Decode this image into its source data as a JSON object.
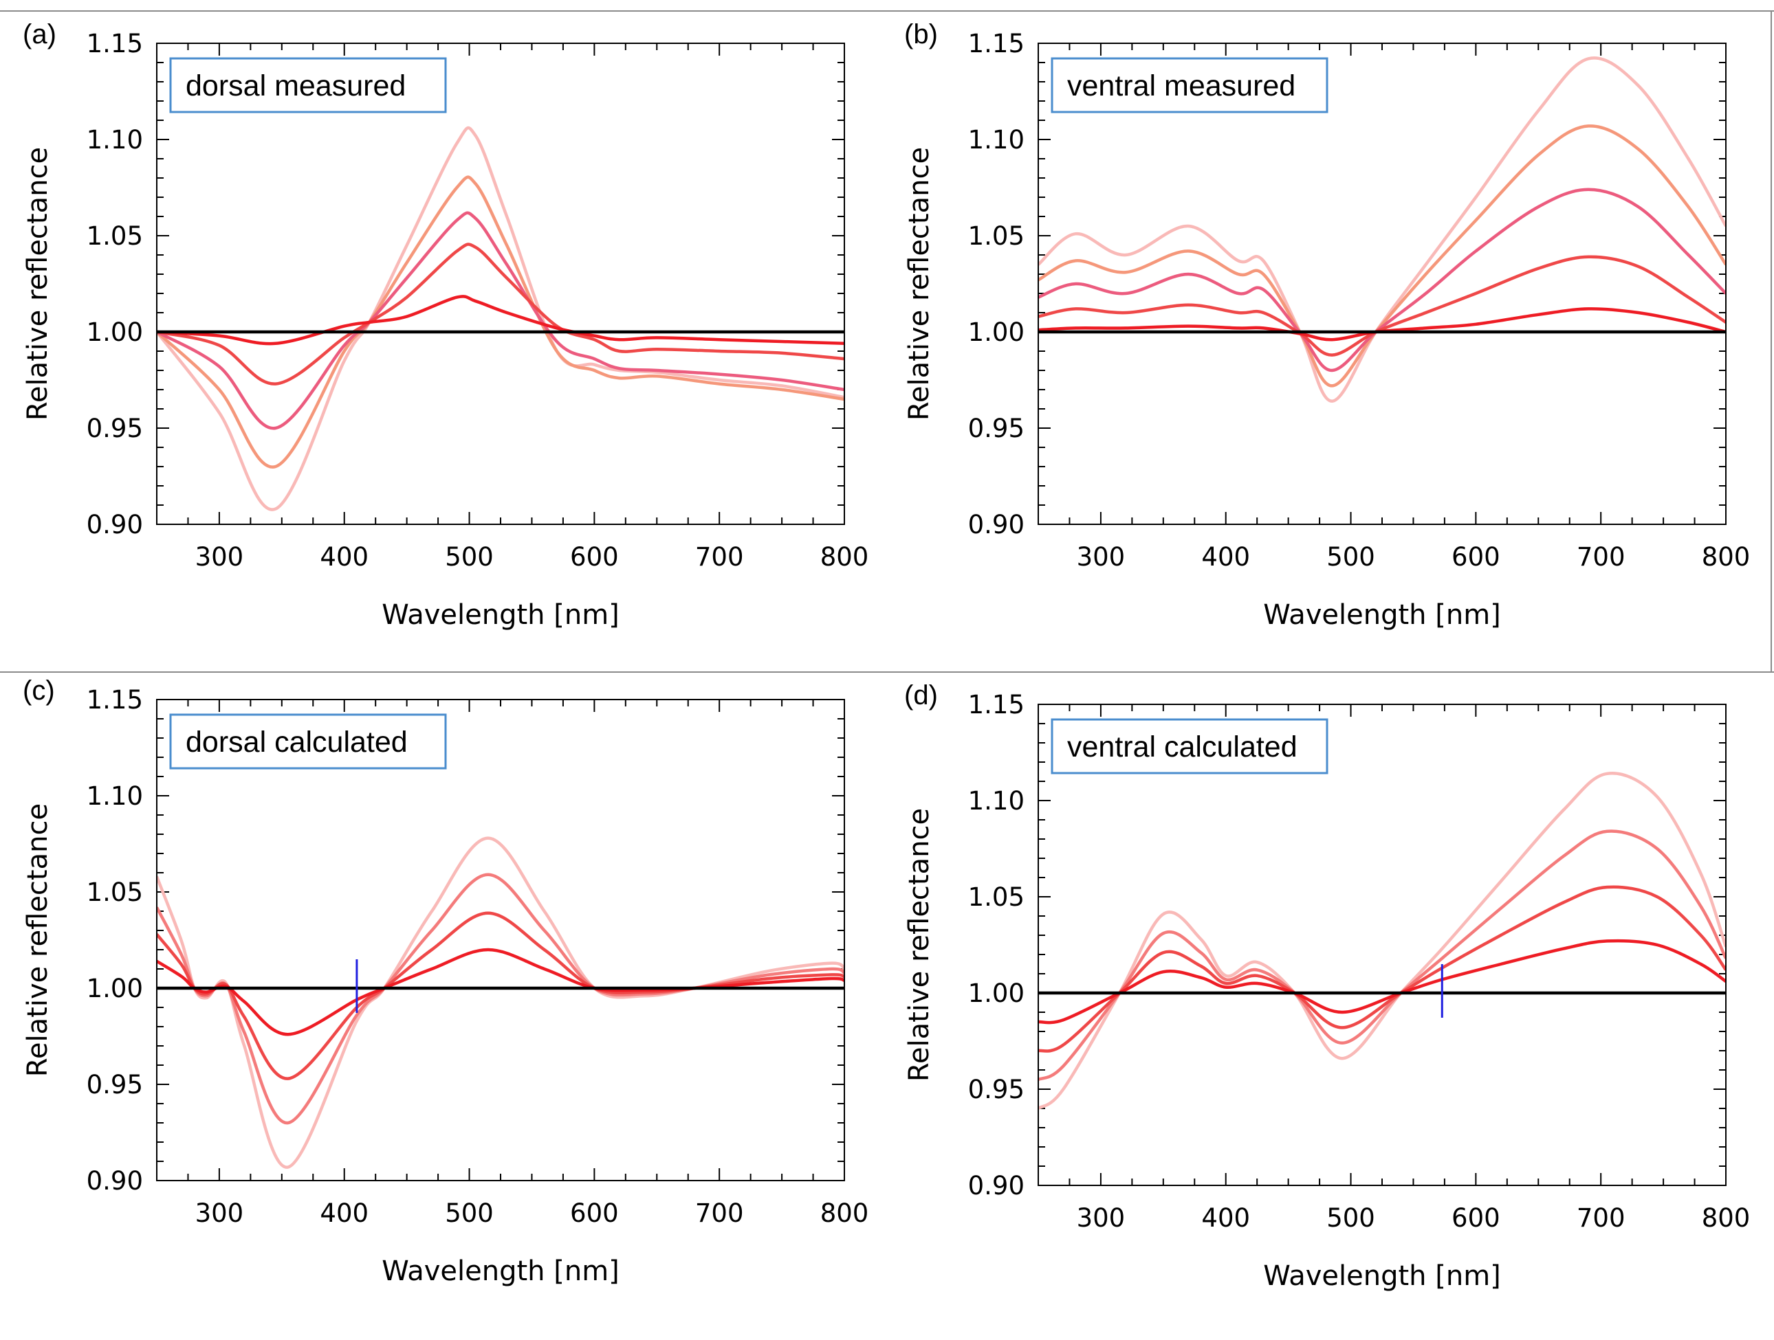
{
  "chart_data": [
    {
      "panel": "(a)",
      "type": "line",
      "legend": "dorsal measured",
      "xlabel": "Wavelength [nm]",
      "ylabel": "Relative reflectance",
      "xlim": [
        250,
        800
      ],
      "ylim": [
        0.9,
        1.15
      ],
      "xticks": [
        "300",
        "400",
        "500",
        "600",
        "700",
        "800"
      ],
      "yticks": [
        "0.90",
        "0.95",
        "1.00",
        "1.05",
        "1.10",
        "1.15"
      ],
      "reference_line": 1.0,
      "colors": [
        "#ee1c24",
        "#ef4848",
        "#ec5b7e",
        "#f5977a",
        "#f9b9b7"
      ],
      "x": [
        250,
        300,
        345,
        400,
        420,
        450,
        490,
        505,
        530,
        570,
        600,
        620,
        650,
        700,
        750,
        800
      ],
      "series": [
        {
          "values": [
            1.0,
            0.998,
            0.994,
            1.003,
            1.005,
            1.008,
            1.018,
            1.016,
            1.01,
            1.002,
            0.998,
            0.996,
            0.997,
            0.996,
            0.995,
            0.994
          ]
        },
        {
          "values": [
            1.0,
            0.993,
            0.973,
            0.997,
            1.005,
            1.018,
            1.042,
            1.044,
            1.028,
            1.003,
            0.996,
            0.99,
            0.991,
            0.99,
            0.989,
            0.986
          ]
        },
        {
          "values": [
            1.0,
            0.982,
            0.95,
            0.993,
            1.005,
            1.028,
            1.058,
            1.059,
            1.035,
            0.995,
            0.986,
            0.981,
            0.98,
            0.978,
            0.975,
            0.97
          ]
        },
        {
          "values": [
            1.0,
            0.97,
            0.93,
            0.99,
            1.005,
            1.036,
            1.075,
            1.077,
            1.045,
            0.99,
            0.98,
            0.976,
            0.977,
            0.973,
            0.97,
            0.965
          ]
        },
        {
          "values": [
            1.0,
            0.958,
            0.908,
            0.985,
            1.005,
            1.045,
            1.098,
            1.102,
            1.06,
            0.99,
            0.983,
            0.98,
            0.979,
            0.975,
            0.972,
            0.966
          ]
        }
      ]
    },
    {
      "panel": "(b)",
      "type": "line",
      "legend": "ventral measured",
      "xlabel": "Wavelength [nm]",
      "ylabel": "Relative reflectance",
      "xlim": [
        250,
        800
      ],
      "ylim": [
        0.9,
        1.15
      ],
      "xticks": [
        "300",
        "400",
        "500",
        "600",
        "700",
        "800"
      ],
      "yticks": [
        "0.90",
        "0.95",
        "1.00",
        "1.05",
        "1.10",
        "1.15"
      ],
      "reference_line": 1.0,
      "colors": [
        "#ee1c24",
        "#ef4848",
        "#ec5b7e",
        "#f5977a",
        "#f9b9b7"
      ],
      "x": [
        250,
        280,
        320,
        370,
        410,
        430,
        460,
        485,
        520,
        560,
        600,
        650,
        690,
        730,
        770,
        800
      ],
      "series": [
        {
          "values": [
            1.001,
            1.002,
            1.002,
            1.003,
            1.002,
            1.002,
            0.999,
            0.996,
            1.0,
            1.002,
            1.004,
            1.009,
            1.012,
            1.01,
            1.005,
            1.0
          ]
        },
        {
          "values": [
            1.008,
            1.012,
            1.01,
            1.014,
            1.01,
            1.01,
            0.999,
            0.988,
            1.0,
            1.01,
            1.02,
            1.033,
            1.039,
            1.034,
            1.018,
            1.005
          ]
        },
        {
          "values": [
            1.018,
            1.025,
            1.02,
            1.03,
            1.02,
            1.022,
            0.999,
            0.98,
            1.0,
            1.02,
            1.042,
            1.065,
            1.074,
            1.065,
            1.04,
            1.02
          ]
        },
        {
          "values": [
            1.027,
            1.037,
            1.031,
            1.042,
            1.03,
            1.03,
            0.999,
            0.972,
            1.0,
            1.03,
            1.058,
            1.092,
            1.107,
            1.095,
            1.065,
            1.035
          ]
        },
        {
          "values": [
            1.035,
            1.051,
            1.04,
            1.055,
            1.037,
            1.037,
            0.999,
            0.964,
            1.0,
            1.035,
            1.07,
            1.115,
            1.142,
            1.128,
            1.09,
            1.055
          ]
        }
      ]
    },
    {
      "panel": "(c)",
      "type": "line",
      "legend": "dorsal calculated",
      "xlabel": "Wavelength [nm]",
      "ylabel": "Relative reflectance",
      "xlim": [
        250,
        800
      ],
      "ylim": [
        0.9,
        1.15
      ],
      "xticks": [
        "300",
        "400",
        "500",
        "600",
        "700",
        "800"
      ],
      "yticks": [
        "0.90",
        "0.95",
        "1.00",
        "1.05",
        "1.10",
        "1.15"
      ],
      "reference_line": 1.0,
      "marker_x": 410,
      "colors": [
        "#ee1c24",
        "#ef4848",
        "#f47b7b",
        "#f9b9b7"
      ],
      "x": [
        250,
        270,
        280,
        290,
        305,
        320,
        355,
        410,
        432,
        470,
        515,
        560,
        600,
        640,
        680,
        740,
        790,
        800
      ],
      "series": [
        {
          "values": [
            1.014,
            1.006,
            1.0,
            0.998,
            1.001,
            0.993,
            0.976,
            0.994,
            1.0,
            1.01,
            1.02,
            1.01,
            1.0,
            0.999,
            1.0,
            1.003,
            1.005,
            1.004
          ]
        },
        {
          "values": [
            1.028,
            1.012,
            1.0,
            0.997,
            1.002,
            0.985,
            0.953,
            0.99,
            1.0,
            1.02,
            1.039,
            1.02,
            1.0,
            0.998,
            1.0,
            1.005,
            1.007,
            1.006
          ]
        },
        {
          "values": [
            1.042,
            1.017,
            1.0,
            0.996,
            1.002,
            0.977,
            0.93,
            0.986,
            1.0,
            1.03,
            1.059,
            1.03,
            1.0,
            0.997,
            1.0,
            1.007,
            1.01,
            1.008
          ]
        },
        {
          "values": [
            1.058,
            1.024,
            1.0,
            0.995,
            1.003,
            0.97,
            0.907,
            0.983,
            1.0,
            1.04,
            1.078,
            1.04,
            1.0,
            0.996,
            1.0,
            1.009,
            1.013,
            1.01
          ]
        }
      ]
    },
    {
      "panel": "(d)",
      "type": "line",
      "legend": "ventral calculated",
      "xlabel": "Wavelength [nm]",
      "ylabel": "Relative reflectance",
      "xlim": [
        250,
        800
      ],
      "ylim": [
        0.9,
        1.15
      ],
      "xticks": [
        "300",
        "400",
        "500",
        "600",
        "700",
        "800"
      ],
      "yticks": [
        "0.90",
        "0.95",
        "1.00",
        "1.05",
        "1.10",
        "1.15"
      ],
      "reference_line": 1.0,
      "marker_x": 573,
      "colors": [
        "#ee1c24",
        "#ef4848",
        "#f47b7b",
        "#f9b9b7"
      ],
      "x": [
        250,
        270,
        315,
        350,
        380,
        400,
        425,
        455,
        493,
        540,
        573,
        620,
        670,
        705,
        745,
        780,
        800
      ],
      "series": [
        {
          "values": [
            0.985,
            0.986,
            1.0,
            1.011,
            1.008,
            1.003,
            1.005,
            1.0,
            0.99,
            1.0,
            1.007,
            1.015,
            1.023,
            1.027,
            1.025,
            1.015,
            1.006
          ]
        },
        {
          "values": [
            0.97,
            0.973,
            1.0,
            1.021,
            1.014,
            1.005,
            1.009,
            1.0,
            0.982,
            1.0,
            1.013,
            1.03,
            1.047,
            1.055,
            1.05,
            1.03,
            1.012
          ]
        },
        {
          "values": [
            0.955,
            0.962,
            1.0,
            1.031,
            1.021,
            1.007,
            1.012,
            1.0,
            0.974,
            1.0,
            1.018,
            1.044,
            1.071,
            1.084,
            1.075,
            1.045,
            1.018
          ]
        },
        {
          "values": [
            0.94,
            0.95,
            1.0,
            1.041,
            1.028,
            1.009,
            1.016,
            1.0,
            0.966,
            1.0,
            1.023,
            1.058,
            1.095,
            1.114,
            1.102,
            1.062,
            1.024
          ]
        }
      ]
    }
  ]
}
